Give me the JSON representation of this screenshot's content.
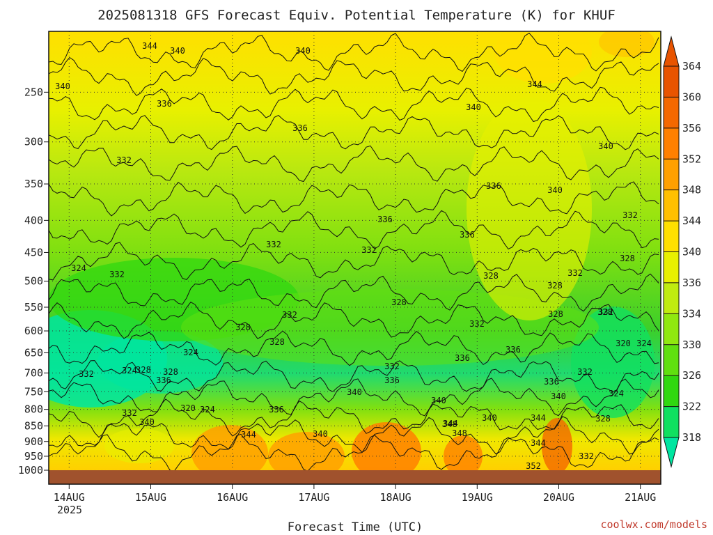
{
  "chart_data": {
    "type": "heatmap",
    "title": "2025081318 GFS Forecast Equiv. Potential Temperature (K) for KHUF",
    "xlabel": "Forecast Time (UTC)",
    "ylabel": "",
    "x_ticks": [
      "14AUG",
      "15AUG",
      "16AUG",
      "17AUG",
      "18AUG",
      "19AUG",
      "20AUG",
      "21AUG"
    ],
    "x_year": "2025",
    "x_range_days": [
      13.75,
      21.25
    ],
    "y_ticks": [
      250,
      300,
      350,
      400,
      450,
      500,
      550,
      600,
      650,
      700,
      750,
      800,
      850,
      900,
      950,
      1000
    ],
    "y_range_hpa": [
      200,
      1000
    ],
    "y_scale": "log",
    "colorbar_ticks": [
      318,
      322,
      326,
      330,
      334,
      336,
      340,
      344,
      348,
      352,
      356,
      360,
      364
    ],
    "contour_labels": [
      "344",
      "340",
      "340",
      "340",
      "344",
      "336",
      "340",
      "336",
      "340",
      "332",
      "336",
      "340",
      "336",
      "332",
      "336",
      "332",
      "332",
      "328",
      "324",
      "332",
      "328",
      "328",
      "332",
      "328",
      "332",
      "328",
      "328",
      "328",
      "332",
      "328",
      "324",
      "324",
      "332",
      "328",
      "320",
      "324",
      "332",
      "336",
      "332",
      "336",
      "336",
      "336",
      "332",
      "340",
      "340",
      "340",
      "344",
      "340",
      "344",
      "348",
      "348",
      "344",
      "352",
      "332",
      "336",
      "340",
      "328",
      "324",
      "320",
      "324",
      "332",
      "328",
      "336",
      "340",
      "344"
    ],
    "colors": {
      "318": "#00e6a0",
      "322": "#10e060",
      "326": "#30d810",
      "330": "#60e010",
      "334": "#90e810",
      "336": "#c0ec10",
      "340": "#e8f000",
      "344": "#ffe000",
      "348": "#ffc000",
      "352": "#ffa000",
      "356": "#ff8000",
      "360": "#f46800",
      "364": "#e85400",
      "ground": "#a0522d"
    },
    "grid": "dotted"
  },
  "credit": "coolwx.com/models"
}
